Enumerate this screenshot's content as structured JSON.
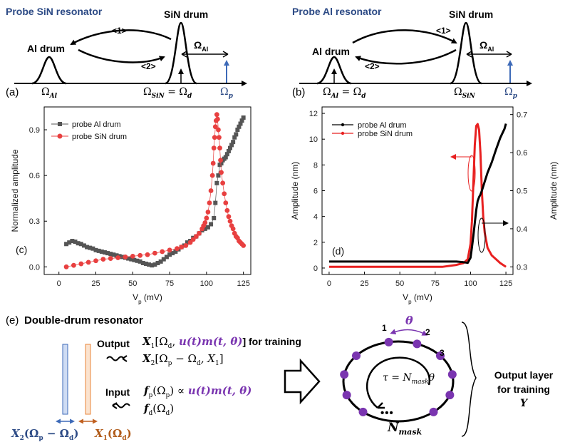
{
  "panel_a": {
    "title": "Probe SiN resonator",
    "al_label": "Al drum",
    "sin_label": "SiN drum",
    "arrow1": "<1>",
    "arrow2": "<2>",
    "omega_al_bar": "Ω",
    "omega_al_bar_sub": "Al",
    "tag": "(a)",
    "axis_al": "Ω",
    "axis_al_sub": "Al",
    "axis_sin": "Ω",
    "axis_sin_sub": "SiN",
    "axis_eq": "= Ω",
    "axis_eq_sub": "d",
    "axis_p": "Ω",
    "axis_p_sub": "p"
  },
  "panel_b": {
    "title": "Probe Al resonator",
    "al_label": "Al drum",
    "sin_label": "SiN drum",
    "arrow1": "<1>",
    "arrow2": "<2>",
    "omega_al_bar": "Ω",
    "omega_al_bar_sub": "Al",
    "tag": "(b)",
    "axis_al": "Ω",
    "axis_al_sub": "Al",
    "axis_eq": "= Ω",
    "axis_eq_sub": "d",
    "axis_sin": "Ω",
    "axis_sin_sub": "SiN",
    "axis_p": "Ω",
    "axis_p_sub": "p"
  },
  "panel_e": {
    "tag": "(e)",
    "title": "Double-drum resonator",
    "output_label": "Output",
    "x1_line_a": "X",
    "x1_line_a_sub": "1",
    "x1_line_b": "[Ω",
    "x1_line_b_sub": "d",
    "x1_line_c": ", ",
    "x1_purple": "u(t)m(t, θ)",
    "x1_line_d": "] for training",
    "x2_line_a": "X",
    "x2_line_a_sub": "2",
    "x2_line_b": "[Ω",
    "x2_line_b_sub": "p",
    "x2_line_c": " − Ω",
    "x2_line_c_sub": "d",
    "x2_line_d": ", X",
    "x2_line_d_sub": "1",
    "x2_line_e": "]",
    "input_label": "Input",
    "fp_a": "f",
    "fp_a_sub": "p",
    "fp_b": "(Ω",
    "fp_b_sub": "p",
    "fp_c": ") ∝ ",
    "fp_purple": "u(t)m(t, θ)",
    "fd_a": "f",
    "fd_a_sub": "d",
    "fd_b": "(Ω",
    "fd_b_sub": "d",
    "fd_c": ")",
    "x2_bottom": "X",
    "x2_bottom_sub": "2",
    "x2_bottom_b": "(Ω",
    "x2_bottom_b_sub": "p",
    "x2_bottom_c": " − Ω",
    "x2_bottom_c_sub": "d",
    "x2_bottom_d": ")",
    "x1_bottom": "X",
    "x1_bottom_sub": "1",
    "x1_bottom_b": "(Ω",
    "x1_bottom_b_sub": "d",
    "x1_bottom_c": ")",
    "theta": "θ",
    "node1": "1",
    "node2": "2",
    "node3": "3",
    "tau_a": "τ = N",
    "tau_sub": "mask",
    "tau_b": "θ",
    "nmask": "N",
    "nmask_sub": "mask",
    "dots": "•••",
    "output_layer_1": "Output layer",
    "output_layer_2": "for training",
    "output_layer_3": "Y"
  },
  "colors": {
    "title_blue": "#2c4a85",
    "probe_arrow_blue": "#3d6ab8",
    "red": "#e84040",
    "gray": "#555555",
    "purple": "#7a35b0",
    "orange_beam": "#e8853a",
    "blue_beam": "#5a86cf"
  },
  "chart_data": [
    {
      "type": "scatter",
      "tag": "(c)",
      "xlabel": "V",
      "xlabel_sub": "p",
      "xlabel_unit": " (mV)",
      "ylabel": "Normalized amplitude",
      "xlim": [
        -10,
        130
      ],
      "ylim": [
        -0.05,
        1.05
      ],
      "xticks": [
        0,
        25,
        50,
        75,
        100,
        125
      ],
      "yticks": [
        0.0,
        0.3,
        0.6,
        0.9
      ],
      "ytick_labels": [
        "0.0",
        "0.3",
        "0.6",
        "0.9"
      ],
      "legend_position": "top-left",
      "series": [
        {
          "name": "probe Al drum",
          "marker": "square",
          "color": "#555555",
          "x": [
            5,
            7,
            9,
            11,
            13,
            15,
            17,
            19,
            21,
            23,
            25,
            27,
            29,
            31,
            33,
            35,
            37,
            39,
            41,
            43,
            45,
            47,
            49,
            51,
            53,
            55,
            57,
            59,
            61,
            63,
            65,
            67,
            69,
            71,
            73,
            75,
            77,
            79,
            81,
            83,
            85,
            87,
            89,
            91,
            93,
            95,
            97,
            99,
            101,
            103,
            105,
            106,
            107,
            108,
            109,
            110,
            111,
            112,
            113,
            114,
            115,
            116,
            117,
            118,
            119,
            120,
            121,
            122,
            123,
            124,
            125
          ],
          "y": [
            0.15,
            0.16,
            0.17,
            0.165,
            0.155,
            0.15,
            0.14,
            0.13,
            0.125,
            0.12,
            0.11,
            0.105,
            0.1,
            0.095,
            0.09,
            0.085,
            0.08,
            0.075,
            0.07,
            0.065,
            0.06,
            0.055,
            0.05,
            0.045,
            0.04,
            0.035,
            0.025,
            0.02,
            0.015,
            0.01,
            0.015,
            0.025,
            0.035,
            0.05,
            0.065,
            0.08,
            0.09,
            0.1,
            0.115,
            0.13,
            0.14,
            0.16,
            0.17,
            0.19,
            0.2,
            0.22,
            0.24,
            0.25,
            0.26,
            0.28,
            0.32,
            0.42,
            0.55,
            0.6,
            0.67,
            0.68,
            0.7,
            0.71,
            0.72,
            0.74,
            0.76,
            0.78,
            0.8,
            0.82,
            0.85,
            0.87,
            0.9,
            0.92,
            0.94,
            0.96,
            0.98
          ]
        },
        {
          "name": "probe SiN drum",
          "marker": "circle",
          "color": "#e84040",
          "x": [
            5,
            10,
            15,
            20,
            25,
            30,
            35,
            40,
            45,
            50,
            55,
            60,
            65,
            70,
            75,
            80,
            83,
            86,
            89,
            91,
            93,
            95,
            97,
            98,
            99,
            100,
            101,
            102,
            103,
            104,
            104.5,
            105,
            105.5,
            106,
            106.5,
            107,
            107.5,
            108,
            108.5,
            109,
            109.5,
            110,
            111,
            112,
            113,
            114,
            115,
            116,
            117,
            118,
            119,
            120,
            121,
            122,
            123,
            124,
            125
          ],
          "y": [
            0.0,
            0.01,
            0.02,
            0.03,
            0.04,
            0.05,
            0.055,
            0.06,
            0.065,
            0.07,
            0.075,
            0.08,
            0.09,
            0.1,
            0.11,
            0.12,
            0.13,
            0.14,
            0.16,
            0.18,
            0.2,
            0.22,
            0.25,
            0.27,
            0.29,
            0.32,
            0.36,
            0.42,
            0.5,
            0.6,
            0.68,
            0.78,
            0.85,
            0.92,
            0.96,
            1.0,
            0.97,
            0.9,
            0.85,
            0.78,
            0.7,
            0.62,
            0.55,
            0.48,
            0.42,
            0.37,
            0.33,
            0.3,
            0.27,
            0.25,
            0.22,
            0.2,
            0.19,
            0.17,
            0.16,
            0.15,
            0.14
          ]
        }
      ]
    },
    {
      "type": "line",
      "tag": "(d)",
      "xlabel": "V",
      "xlabel_sub": "p",
      "xlabel_unit": " (mV)",
      "ylabel": "Amplitude (nm)",
      "ylabel_right": "Amplitude (nm)",
      "xlim": [
        -5,
        130
      ],
      "ylim": [
        -0.5,
        12.5
      ],
      "ylim_right": [
        0.28,
        0.72
      ],
      "xticks": [
        0,
        25,
        50,
        75,
        100,
        125
      ],
      "yticks": [
        0,
        2,
        4,
        6,
        8,
        10,
        12
      ],
      "yticks_right": [
        0.3,
        0.4,
        0.5,
        0.6,
        0.7
      ],
      "legend_position": "top-left",
      "series": [
        {
          "name": "probe Al drum",
          "axis": "left",
          "color": "#000000",
          "x": [
            0,
            20,
            40,
            60,
            80,
            90,
            95,
            98,
            100,
            101,
            102,
            103,
            104,
            105,
            106,
            107,
            108,
            110,
            112,
            115,
            118,
            121,
            124,
            125
          ],
          "y": [
            0.5,
            0.5,
            0.5,
            0.5,
            0.5,
            0.5,
            0.45,
            0.4,
            0.8,
            1.6,
            2.5,
            3.5,
            4.5,
            5.2,
            5.5,
            5.7,
            6.0,
            6.7,
            7.4,
            8.2,
            9.2,
            10.1,
            10.8,
            11.2
          ]
        },
        {
          "name": "probe SiN drum",
          "axis": "right",
          "color": "#e82020",
          "x": [
            0,
            20,
            40,
            60,
            80,
            90,
            95,
            98,
            100,
            101,
            102,
            103,
            104,
            105,
            106,
            107,
            108,
            109,
            110,
            112,
            115,
            118,
            121,
            125
          ],
          "y": [
            0.3,
            0.3,
            0.3,
            0.3,
            0.3,
            0.305,
            0.31,
            0.32,
            0.36,
            0.42,
            0.52,
            0.62,
            0.67,
            0.675,
            0.66,
            0.6,
            0.5,
            0.43,
            0.39,
            0.35,
            0.33,
            0.32,
            0.31,
            0.3
          ]
        }
      ]
    }
  ]
}
